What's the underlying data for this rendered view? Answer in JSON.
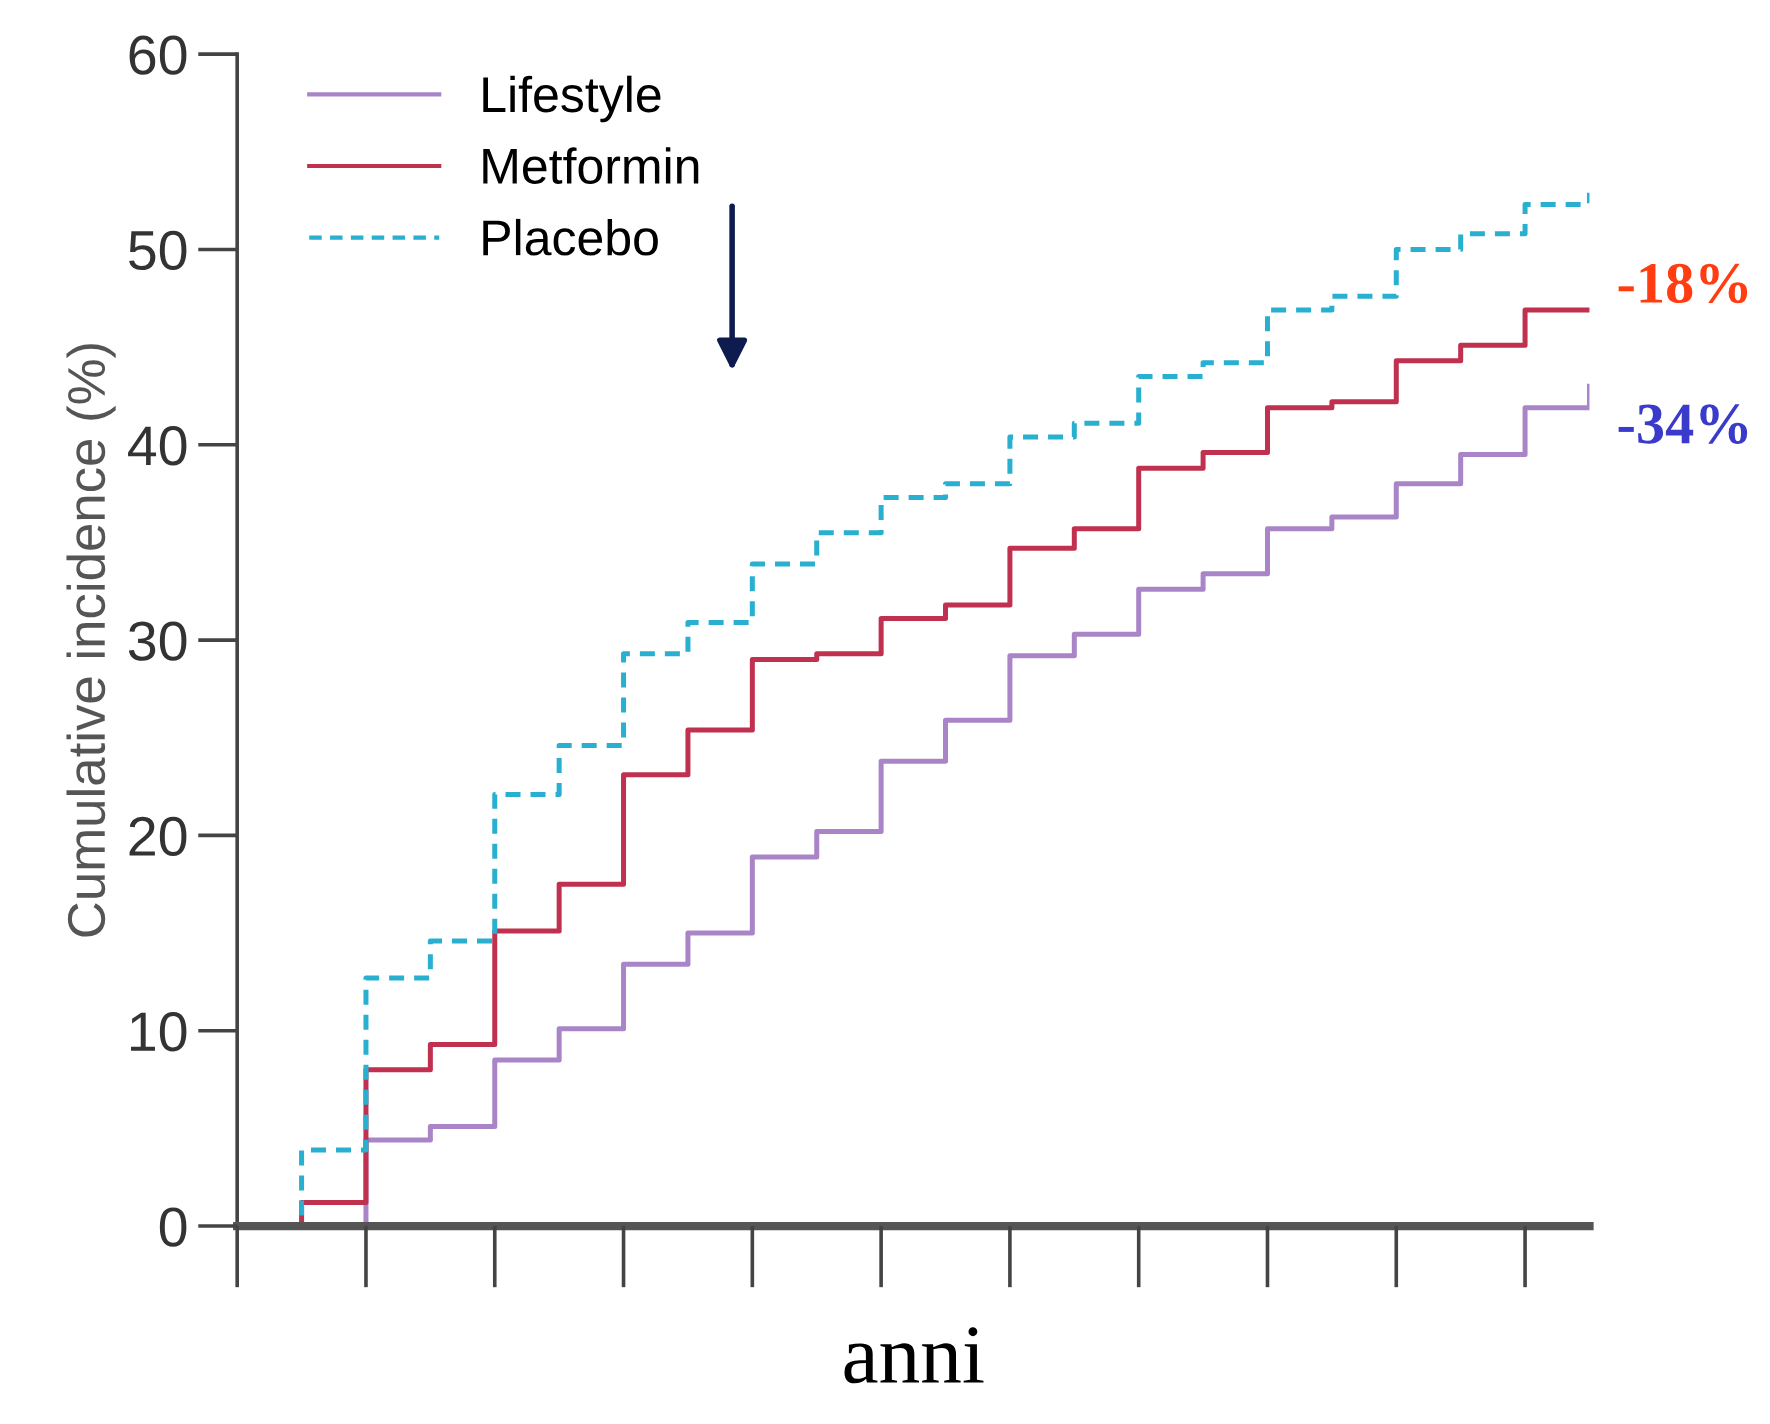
{
  "chart_data": {
    "type": "step",
    "xlabel": "anni",
    "ylabel": "Cumulative incidence (%)",
    "categories": [
      null,
      null,
      null,
      null,
      null,
      null,
      null,
      null,
      null,
      null,
      null,
      null,
      null,
      null,
      null,
      null,
      null,
      null,
      null,
      null,
      null,
      null
    ],
    "series": [
      {
        "name": "Lifestyle",
        "color": "#a985c8",
        "line_style": "solid",
        "values": [
          0,
          0,
          4.4,
          5.1,
          8.5,
          10.1,
          13.4,
          15.0,
          18.9,
          20.2,
          23.8,
          25.9,
          29.2,
          30.3,
          32.6,
          33.4,
          35.7,
          36.3,
          38.0,
          39.5,
          41.9,
          43.0
        ]
      },
      {
        "name": "Metformin",
        "color": "#c0304f",
        "line_style": "solid",
        "values": [
          0,
          1.2,
          8.0,
          9.3,
          15.1,
          17.5,
          23.1,
          25.4,
          29.0,
          29.3,
          31.1,
          31.8,
          34.7,
          35.7,
          38.8,
          39.6,
          41.9,
          42.2,
          44.3,
          45.1,
          46.9,
          46.9
        ]
      },
      {
        "name": "Placebo",
        "color": "#29b0d0",
        "line_style": "dashed",
        "values": [
          0,
          3.9,
          12.7,
          14.6,
          22.1,
          24.6,
          29.3,
          30.9,
          33.9,
          35.5,
          37.3,
          38.0,
          40.4,
          41.1,
          43.5,
          44.2,
          46.9,
          47.6,
          50.0,
          50.8,
          52.3,
          52.9
        ]
      }
    ],
    "ylim": [
      0,
      60
    ],
    "yticks": [
      0,
      10,
      20,
      30,
      40,
      50,
      60
    ],
    "grid": false,
    "legend": "top left",
    "marker": "none",
    "annotations": [
      "-18%",
      "-34%"
    ]
  }
}
